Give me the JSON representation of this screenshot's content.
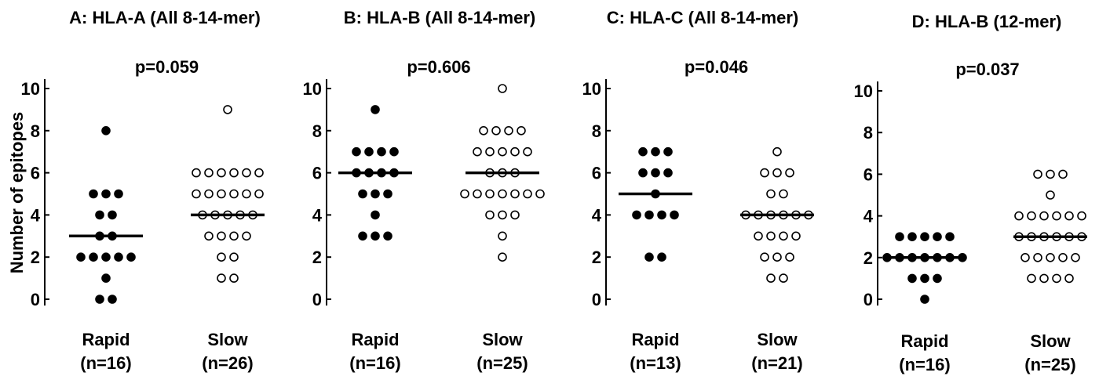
{
  "figure": {
    "ylabel": "Number of epitopes",
    "colors": {
      "filled": "#000000",
      "open": "#ffffff",
      "stroke": "#000000"
    }
  },
  "chart_data": [
    {
      "type": "scatter",
      "title": "A: HLA-A (All 8-14-mer)",
      "annotation": "p=0.059",
      "ylim": [
        0,
        10
      ],
      "yticks": [
        "0",
        "2",
        "4",
        "6",
        "8",
        "10"
      ],
      "groups": [
        {
          "label": "Rapid",
          "n_label": "(n=16)",
          "marker": "filled",
          "median": 3,
          "values": [
            8,
            5,
            5,
            5,
            4,
            4,
            3,
            3,
            2,
            2,
            2,
            2,
            2,
            1,
            0,
            0
          ]
        },
        {
          "label": "Slow",
          "n_label": "(n=26)",
          "marker": "open",
          "median": 4,
          "values": [
            9,
            6,
            6,
            6,
            6,
            6,
            6,
            5,
            5,
            5,
            5,
            5,
            5,
            4,
            4,
            4,
            4,
            4,
            3,
            3,
            3,
            3,
            2,
            2,
            1,
            1
          ]
        }
      ]
    },
    {
      "type": "scatter",
      "title": "B: HLA-B (All 8-14-mer)",
      "annotation": "p=0.606",
      "ylim": [
        0,
        10
      ],
      "yticks": [
        "0",
        "2",
        "4",
        "6",
        "8",
        "10"
      ],
      "groups": [
        {
          "label": "Rapid",
          "n_label": "(n=16)",
          "marker": "filled",
          "median": 6,
          "values": [
            9,
            7,
            7,
            7,
            7,
            6,
            6,
            6,
            6,
            5,
            5,
            5,
            4,
            3,
            3,
            3
          ]
        },
        {
          "label": "Slow",
          "n_label": "(n=25)",
          "marker": "open",
          "median": 6,
          "values": [
            10,
            8,
            8,
            8,
            8,
            7,
            7,
            7,
            7,
            7,
            6,
            6,
            6,
            5,
            5,
            5,
            5,
            5,
            5,
            5,
            4,
            4,
            4,
            3,
            2
          ]
        }
      ]
    },
    {
      "type": "scatter",
      "title": "C: HLA-C (All 8-14-mer)",
      "annotation": "p=0.046",
      "ylim": [
        0,
        10
      ],
      "yticks": [
        "0",
        "2",
        "4",
        "6",
        "8",
        "10"
      ],
      "groups": [
        {
          "label": "Rapid",
          "n_label": "(n=13)",
          "marker": "filled",
          "median": 5,
          "values": [
            7,
            7,
            7,
            6,
            6,
            6,
            5,
            4,
            4,
            4,
            4,
            2,
            2
          ]
        },
        {
          "label": "Slow",
          "n_label": "(n=21)",
          "marker": "open",
          "median": 4,
          "values": [
            7,
            6,
            6,
            6,
            5,
            5,
            4,
            4,
            4,
            4,
            4,
            4,
            3,
            3,
            3,
            3,
            2,
            2,
            2,
            1,
            1
          ]
        }
      ]
    },
    {
      "type": "scatter",
      "title": "D: HLA-B (12-mer)",
      "annotation": "p=0.037",
      "ylim": [
        0,
        10
      ],
      "yticks": [
        "0",
        "2",
        "4",
        "6",
        "8",
        "10"
      ],
      "groups": [
        {
          "label": "Rapid",
          "n_label": "(n=16)",
          "marker": "filled",
          "median": 2,
          "values": [
            3,
            3,
            3,
            3,
            3,
            2,
            2,
            2,
            2,
            2,
            2,
            2,
            1,
            1,
            1,
            0
          ]
        },
        {
          "label": "Slow",
          "n_label": "(n=25)",
          "marker": "open",
          "median": 3,
          "values": [
            6,
            6,
            6,
            5,
            4,
            4,
            4,
            4,
            4,
            4,
            3,
            3,
            3,
            3,
            3,
            3,
            2,
            2,
            2,
            2,
            2,
            1,
            1,
            1,
            1
          ]
        }
      ]
    }
  ]
}
